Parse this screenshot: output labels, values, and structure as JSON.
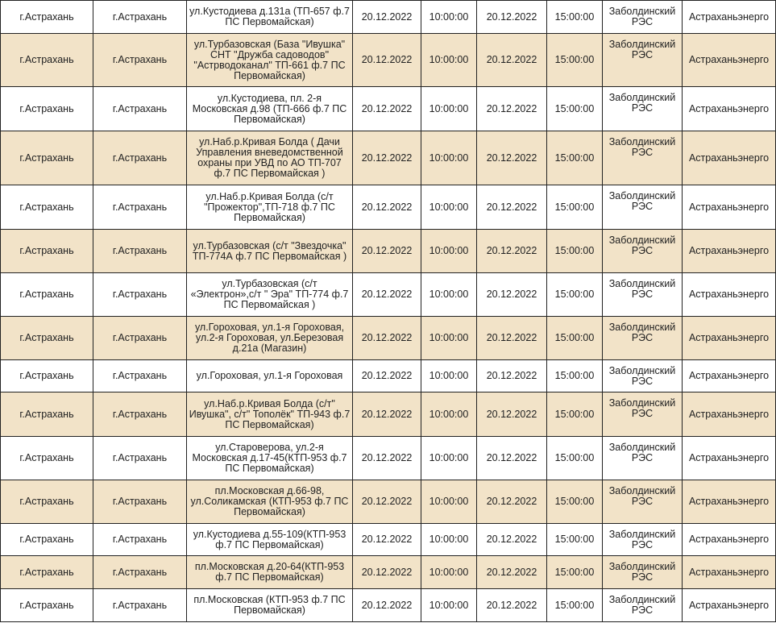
{
  "rows": [
    {
      "city": "г.Астрахань",
      "locality": "г.Астрахань",
      "address": "ул.Кустодиева д.131а (ТП-657 ф.7 ПС Первомайская)",
      "start_date": "20.12.2022",
      "start_time": "10:00:00",
      "end_date": "20.12.2022",
      "end_time": "15:00:00",
      "rees": "Заболдинский РЭС",
      "company": "Астраханьэнерго"
    },
    {
      "city": "г.Астрахань",
      "locality": "г.Астрахань",
      "address": "ул.Турбазовская (База \"Ивушка\" СНТ \"Дружба садоводов\" \"Астрводоканал\" ТП-661 ф.7 ПС Первомайская)",
      "start_date": "20.12.2022",
      "start_time": "10:00:00",
      "end_date": "20.12.2022",
      "end_time": "15:00:00",
      "rees": "Заболдинский РЭС",
      "company": "Астраханьэнерго"
    },
    {
      "city": "г.Астрахань",
      "locality": "г.Астрахань",
      "address": "ул.Кустодиева, пл. 2-я Московская д.98 (ТП-666 ф.7 ПС Первомайская)",
      "start_date": "20.12.2022",
      "start_time": "10:00:00",
      "end_date": "20.12.2022",
      "end_time": "15:00:00",
      "rees": "Заболдинский РЭС",
      "company": "Астраханьэнерго"
    },
    {
      "city": "г.Астрахань",
      "locality": "г.Астрахань",
      "address": "ул.Наб.р.Кривая Болда ( Дачи Управления вневедомственной охраны при УВД по АО ТП-707 ф.7 ПС Первомайская )",
      "start_date": "20.12.2022",
      "start_time": "10:00:00",
      "end_date": "20.12.2022",
      "end_time": "15:00:00",
      "rees": "Заболдинский РЭС",
      "company": "Астраханьэнерго"
    },
    {
      "city": "г.Астрахань",
      "locality": "г.Астрахань",
      "address": "ул.Наб.р.Кривая Болда (с/т \"Прожектор\",ТП-718 ф.7 ПС Первомайская)",
      "start_date": "20.12.2022",
      "start_time": "10:00:00",
      "end_date": "20.12.2022",
      "end_time": "15:00:00",
      "rees": "Заболдинский РЭС",
      "company": "Астраханьэнерго"
    },
    {
      "city": "г.Астрахань",
      "locality": "г.Астрахань",
      "address": "ул.Турбазовская (с/т \"Звездочка\" ТП-774А ф.7 ПС Первомайская )",
      "start_date": "20.12.2022",
      "start_time": "10:00:00",
      "end_date": "20.12.2022",
      "end_time": "15:00:00",
      "rees": "Заболдинский РЭС",
      "company": "Астраханьэнерго"
    },
    {
      "city": "г.Астрахань",
      "locality": "г.Астрахань",
      "address": "ул.Турбазовская (с/т «Электрон»,с/т \" Эра\" ТП-774 ф.7 ПС Первомайская )",
      "start_date": "20.12.2022",
      "start_time": "10:00:00",
      "end_date": "20.12.2022",
      "end_time": "15:00:00",
      "rees": "Заболдинский РЭС",
      "company": "Астраханьэнерго"
    },
    {
      "city": "г.Астрахань",
      "locality": "г.Астрахань",
      "address": "ул.Гороховая, ул.1-я Гороховая, ул.2-я Гороховая, ул.Березовая д.21а (Магазин)",
      "start_date": "20.12.2022",
      "start_time": "10:00:00",
      "end_date": "20.12.2022",
      "end_time": "15:00:00",
      "rees": "Заболдинский РЭС",
      "company": "Астраханьэнерго"
    },
    {
      "city": "г.Астрахань",
      "locality": "г.Астрахань",
      "address": "ул.Гороховая, ул.1-я Гороховая",
      "start_date": "20.12.2022",
      "start_time": "10:00:00",
      "end_date": "20.12.2022",
      "end_time": "15:00:00",
      "rees": "Заболдинский РЭС",
      "company": "Астраханьэнерго"
    },
    {
      "city": "г.Астрахань",
      "locality": "г.Астрахань",
      "address": "ул.Наб.р.Кривая Болда (с/т\" Ивушка\", с/т\" Тополёк\" ТП-943 ф.7 ПС Первомайская)",
      "start_date": "20.12.2022",
      "start_time": "10:00:00",
      "end_date": "20.12.2022",
      "end_time": "15:00:00",
      "rees": "Заболдинский РЭС",
      "company": "Астраханьэнерго"
    },
    {
      "city": "г.Астрахань",
      "locality": "г.Астрахань",
      "address": "ул.Староверова, ул.2-я Московская д.17-45(КТП-953 ф.7 ПС Первомайская)",
      "start_date": "20.12.2022",
      "start_time": "10:00:00",
      "end_date": "20.12.2022",
      "end_time": "15:00:00",
      "rees": "Заболдинский РЭС",
      "company": "Астраханьэнерго"
    },
    {
      "city": "г.Астрахань",
      "locality": "г.Астрахань",
      "address": "пл.Московская д.66-98, ул.Соликамская (КТП-953 ф.7 ПС Первомайская)",
      "start_date": "20.12.2022",
      "start_time": "10:00:00",
      "end_date": "20.12.2022",
      "end_time": "15:00:00",
      "rees": "Заболдинский РЭС",
      "company": "Астраханьэнерго"
    },
    {
      "city": "г.Астрахань",
      "locality": "г.Астрахань",
      "address": "ул.Кустодиева д.55-109(КТП-953 ф.7 ПС Первомайская)",
      "start_date": "20.12.2022",
      "start_time": "10:00:00",
      "end_date": "20.12.2022",
      "end_time": "15:00:00",
      "rees": "Заболдинский РЭС",
      "company": "Астраханьэнерго"
    },
    {
      "city": "г.Астрахань",
      "locality": "г.Астрахань",
      "address": "пл.Московская д.20-64(КТП-953 ф.7 ПС Первомайская)",
      "start_date": "20.12.2022",
      "start_time": "10:00:00",
      "end_date": "20.12.2022",
      "end_time": "15:00:00",
      "rees": "Заболдинский РЭС",
      "company": "Астраханьэнерго"
    },
    {
      "city": "г.Астрахань",
      "locality": "г.Астрахань",
      "address": "пл.Московская (КТП-953 ф.7 ПС Первомайская)",
      "start_date": "20.12.2022",
      "start_time": "10:00:00",
      "end_date": "20.12.2022",
      "end_time": "15:00:00",
      "rees": "Заболдинский РЭС",
      "company": "Астраханьэнерго"
    }
  ]
}
